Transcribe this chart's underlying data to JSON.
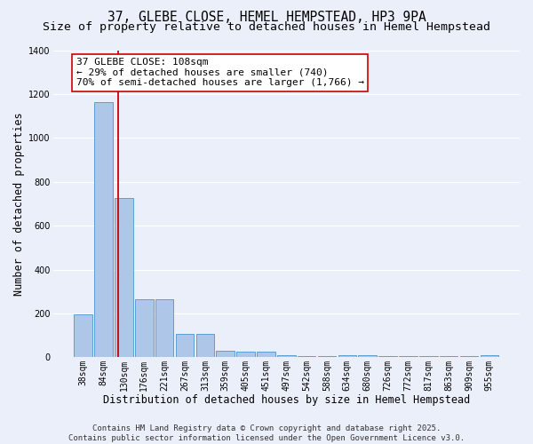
{
  "title_line1": "37, GLEBE CLOSE, HEMEL HEMPSTEAD, HP3 9PA",
  "title_line2": "Size of property relative to detached houses in Hemel Hempstead",
  "xlabel": "Distribution of detached houses by size in Hemel Hempstead",
  "ylabel": "Number of detached properties",
  "bar_labels": [
    "38sqm",
    "84sqm",
    "130sqm",
    "176sqm",
    "221sqm",
    "267sqm",
    "313sqm",
    "359sqm",
    "405sqm",
    "451sqm",
    "497sqm",
    "542sqm",
    "588sqm",
    "634sqm",
    "680sqm",
    "726sqm",
    "772sqm",
    "817sqm",
    "863sqm",
    "909sqm",
    "955sqm"
  ],
  "bar_values": [
    195,
    1165,
    725,
    265,
    265,
    105,
    105,
    30,
    25,
    25,
    10,
    5,
    5,
    10,
    10,
    5,
    5,
    5,
    5,
    5,
    10
  ],
  "bar_color": "#aec6e8",
  "bar_edge_color": "#5a9fd4",
  "vline_x": 1.72,
  "vline_color": "#cc0000",
  "annotation_text": "37 GLEBE CLOSE: 108sqm\n← 29% of detached houses are smaller (740)\n70% of semi-detached houses are larger (1,766) →",
  "annotation_box_color": "#ffffff",
  "annotation_box_edge": "#cc0000",
  "ylim": [
    0,
    1400
  ],
  "yticks": [
    0,
    200,
    400,
    600,
    800,
    1000,
    1200,
    1400
  ],
  "background_color": "#eaeff9",
  "grid_color": "#ffffff",
  "footer_line1": "Contains HM Land Registry data © Crown copyright and database right 2025.",
  "footer_line2": "Contains public sector information licensed under the Open Government Licence v3.0.",
  "title_fontsize": 10.5,
  "subtitle_fontsize": 9.5,
  "axis_label_fontsize": 8.5,
  "tick_fontsize": 7,
  "annotation_fontsize": 8,
  "footer_fontsize": 6.5
}
